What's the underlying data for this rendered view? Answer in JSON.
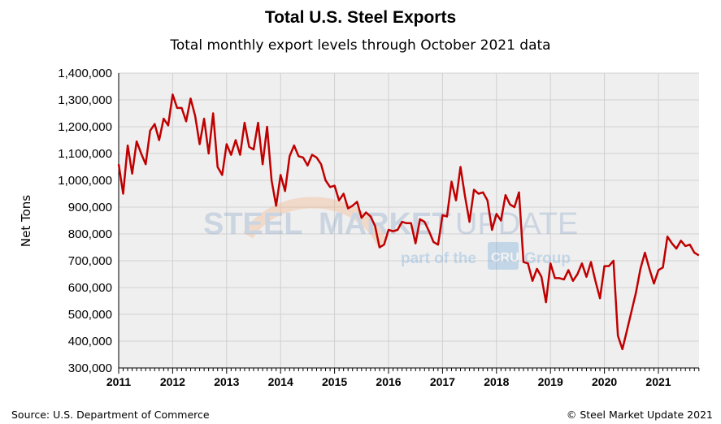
{
  "chart_data": {
    "type": "line",
    "title": "Total U.S. Steel Exports",
    "subtitle": "Total monthly export levels through October 2021 data",
    "ylabel": "Net Tons",
    "xlabel": "",
    "ylim": [
      300000,
      1400000
    ],
    "yticks": [
      "1,400,000",
      "1,300,000",
      "1,200,000",
      "1,100,000",
      "1,000,000",
      "900,000",
      "800,000",
      "700,000",
      "600,000",
      "500,000",
      "400,000",
      "300,000"
    ],
    "xticks": [
      "2011",
      "2012",
      "2013",
      "2014",
      "2015",
      "2016",
      "2017",
      "2018",
      "2019",
      "2020",
      "2021"
    ],
    "x_start": "2011-01",
    "x_end": "2021-10",
    "frequency": "monthly",
    "grid": true,
    "line_color": "#c00000",
    "series": [
      {
        "values": [
          1060000,
          950000,
          1130000,
          1025000,
          1145000,
          1100000,
          1060000,
          1185000,
          1210000,
          1150000,
          1230000,
          1205000,
          1320000,
          1270000,
          1270000,
          1220000,
          1305000,
          1240000,
          1135000,
          1230000,
          1100000,
          1250000,
          1050000,
          1020000,
          1135000,
          1095000,
          1150000,
          1095000,
          1215000,
          1125000,
          1115000,
          1215000,
          1060000,
          1200000,
          1000000,
          905000,
          1020000,
          960000,
          1090000,
          1130000,
          1090000,
          1085000,
          1055000,
          1095000,
          1085000,
          1060000,
          1000000,
          975000,
          980000,
          925000,
          950000,
          895000,
          905000,
          920000,
          860000,
          880000,
          865000,
          830000,
          750000,
          760000,
          815000,
          810000,
          815000,
          845000,
          840000,
          840000,
          765000,
          855000,
          845000,
          810000,
          770000,
          760000,
          870000,
          865000,
          995000,
          925000,
          1050000,
          940000,
          845000,
          965000,
          950000,
          955000,
          925000,
          815000,
          875000,
          850000,
          945000,
          910000,
          900000,
          955000,
          695000,
          690000,
          625000,
          670000,
          640000,
          545000,
          690000,
          635000,
          635000,
          630000,
          665000,
          625000,
          650000,
          690000,
          640000,
          695000,
          625000,
          560000,
          680000,
          680000,
          700000,
          420000,
          370000,
          440000,
          510000,
          580000,
          670000,
          730000,
          670000,
          615000,
          665000,
          675000,
          790000,
          765000,
          745000,
          775000,
          755000,
          760000,
          730000,
          720000
        ]
      }
    ]
  },
  "watermark": {
    "line1a": "STEEL",
    "line1b": "MARKET",
    "line1c": "UPDATE",
    "line2": "part of the",
    "logo": "CRU",
    "line3": "Group"
  },
  "footer": {
    "source": "Source: U.S. Department of Commerce",
    "copyright": "© Steel Market Update 2021"
  }
}
